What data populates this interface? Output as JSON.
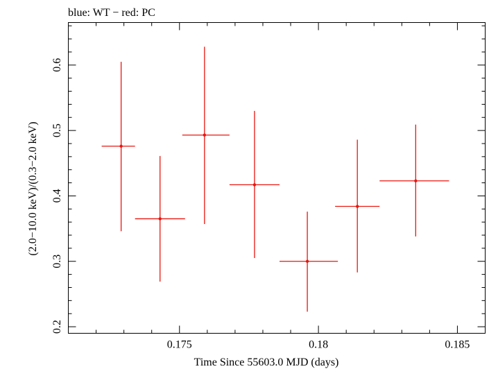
{
  "chart_data": {
    "type": "scatter",
    "title": "blue: WT − red: PC",
    "xlabel": "Time Since 55603.0 MJD (days)",
    "ylabel": "(2.0−10.0 keV)/(0.3−2.0 keV)",
    "xlim": [
      0.171,
      0.186
    ],
    "ylim": [
      0.19,
      0.665
    ],
    "x_ticks": [
      0.175,
      0.18,
      0.185
    ],
    "x_tick_labels": [
      "0.175",
      "0.18",
      "0.185"
    ],
    "y_ticks": [
      0.2,
      0.3,
      0.4,
      0.5,
      0.6
    ],
    "y_tick_labels": [
      "0.2",
      "0.3",
      "0.4",
      "0.5",
      "0.6"
    ],
    "grid": false,
    "series": [
      {
        "color": "#e8140e",
        "points": [
          {
            "x": 0.1729,
            "xlo": 0.1722,
            "xhi": 0.1734,
            "y": 0.476,
            "ylo": 0.346,
            "yhi": 0.605
          },
          {
            "x": 0.1743,
            "xlo": 0.1734,
            "xhi": 0.1752,
            "y": 0.365,
            "ylo": 0.269,
            "yhi": 0.461
          },
          {
            "x": 0.1759,
            "xlo": 0.1751,
            "xhi": 0.1768,
            "y": 0.493,
            "ylo": 0.357,
            "yhi": 0.628
          },
          {
            "x": 0.1777,
            "xlo": 0.1768,
            "xhi": 0.1786,
            "y": 0.417,
            "ylo": 0.305,
            "yhi": 0.53
          },
          {
            "x": 0.1796,
            "xlo": 0.1786,
            "xhi": 0.1807,
            "y": 0.3,
            "ylo": 0.223,
            "yhi": 0.376
          },
          {
            "x": 0.1814,
            "xlo": 0.1806,
            "xhi": 0.1822,
            "y": 0.384,
            "ylo": 0.283,
            "yhi": 0.486
          },
          {
            "x": 0.1835,
            "xlo": 0.1822,
            "xhi": 0.1847,
            "y": 0.423,
            "ylo": 0.338,
            "yhi": 0.509
          }
        ]
      }
    ]
  }
}
